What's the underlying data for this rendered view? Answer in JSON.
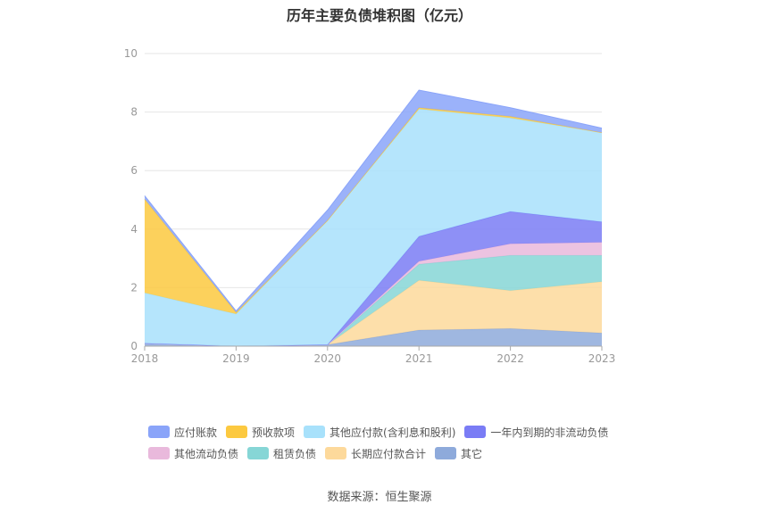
{
  "chart_data": {
    "type": "area",
    "stacked": true,
    "title": "历年主要负债堆积图（亿元）",
    "categories": [
      "2018",
      "2019",
      "2020",
      "2021",
      "2022",
      "2023"
    ],
    "ylim": [
      0,
      10
    ],
    "yticks": [
      0,
      2,
      4,
      6,
      8,
      10
    ],
    "grid": true,
    "legend_position": "bottom",
    "series": [
      {
        "name": "其它",
        "color": "#8eaadb",
        "values": [
          0.1,
          0.0,
          0.05,
          0.55,
          0.6,
          0.45
        ]
      },
      {
        "name": "长期应付款合计",
        "color": "#fdd99b",
        "values": [
          0.0,
          0.0,
          0.0,
          1.7,
          1.3,
          1.75
        ]
      },
      {
        "name": "租赁负债",
        "color": "#86d6d6",
        "values": [
          0.0,
          0.0,
          0.0,
          0.55,
          1.2,
          0.9
        ]
      },
      {
        "name": "其他流动负债",
        "color": "#e9b9dc",
        "values": [
          0.0,
          0.0,
          0.0,
          0.1,
          0.4,
          0.45
        ]
      },
      {
        "name": "一年内到期的非流动负债",
        "color": "#7a7cf5",
        "values": [
          0.0,
          0.0,
          0.0,
          0.85,
          1.1,
          0.7
        ]
      },
      {
        "name": "其他应付款(含利息和股利)",
        "color": "#a8e1fb",
        "values": [
          1.72,
          1.1,
          4.25,
          4.35,
          3.2,
          3.05
        ]
      },
      {
        "name": "预收款项",
        "color": "#fcc940",
        "values": [
          3.2,
          0.05,
          0.0,
          0.05,
          0.05,
          0.0
        ]
      },
      {
        "name": "应付账款",
        "color": "#8aa4f9",
        "values": [
          0.12,
          0.05,
          0.35,
          0.6,
          0.3,
          0.15
        ]
      }
    ]
  },
  "legend": {
    "rows": [
      [
        {
          "label": "应付账款",
          "color": "#8aa4f9"
        },
        {
          "label": "预收款项",
          "color": "#fcc940"
        },
        {
          "label": "其他应付款(含利息和股利)",
          "color": "#a8e1fb"
        },
        {
          "label": "一年内到期的非流动负债",
          "color": "#7a7cf5"
        }
      ],
      [
        {
          "label": "其他流动负债",
          "color": "#e9b9dc"
        },
        {
          "label": "租赁负债",
          "color": "#86d6d6"
        },
        {
          "label": "长期应付款合计",
          "color": "#fdd99b"
        },
        {
          "label": "其它",
          "color": "#8eaadb"
        }
      ]
    ]
  },
  "source": "数据来源：恒生聚源"
}
